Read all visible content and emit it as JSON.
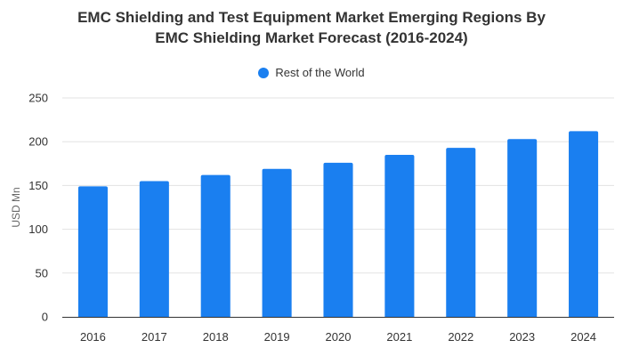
{
  "chart_data": {
    "type": "bar",
    "title_lines": [
      "EMC Shielding and Test Equipment Market Emerging Regions By",
      "EMC Shielding Market Forecast (2016-2024)"
    ],
    "xlabel": "",
    "ylabel": "USD Mn",
    "categories": [
      "2016",
      "2017",
      "2018",
      "2019",
      "2020",
      "2021",
      "2022",
      "2023",
      "2024"
    ],
    "series": [
      {
        "name": "Rest of the World",
        "color": "#1a7ff0",
        "values": [
          149,
          155,
          162,
          169,
          176,
          185,
          193,
          203,
          212
        ]
      }
    ],
    "ylim": [
      0,
      250
    ],
    "yticks": [
      0,
      50,
      100,
      150,
      200,
      250
    ],
    "grid": true,
    "legend_position": "top-center"
  }
}
